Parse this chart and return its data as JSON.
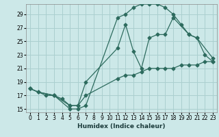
{
  "xlabel": "Humidex (Indice chaleur)",
  "bg_color": "#cce8e8",
  "line_color": "#2d6b5e",
  "grid_color": "#aacfcf",
  "xlim": [
    -0.5,
    23.5
  ],
  "ylim": [
    14.5,
    30.5
  ],
  "yticks": [
    15,
    17,
    19,
    21,
    23,
    25,
    27,
    29
  ],
  "xticks": [
    0,
    1,
    2,
    3,
    4,
    5,
    6,
    7,
    8,
    9,
    10,
    11,
    12,
    13,
    14,
    15,
    16,
    17,
    18,
    19,
    20,
    21,
    22,
    23
  ],
  "line1_x": [
    0,
    1,
    3,
    4,
    5,
    6,
    7,
    11,
    12,
    13,
    14,
    15,
    16,
    17,
    18,
    19,
    20,
    21,
    22,
    23
  ],
  "line1_y": [
    18,
    17.5,
    17,
    16.5,
    15.5,
    15.5,
    17,
    19.5,
    20,
    20,
    20.5,
    21,
    21,
    21,
    21,
    21.5,
    21.5,
    21.5,
    22,
    22
  ],
  "line2_x": [
    0,
    1,
    3,
    5,
    6,
    7,
    11,
    12,
    13,
    14,
    15,
    16,
    17,
    18,
    20,
    21,
    22,
    23
  ],
  "line2_y": [
    18,
    17.5,
    17,
    15.5,
    15.5,
    19,
    24,
    27.5,
    23.5,
    21,
    25.5,
    26,
    26,
    28.5,
    26,
    25.5,
    23,
    22
  ],
  "line3_x": [
    0,
    2,
    3,
    5,
    6,
    7,
    11,
    12,
    13,
    14,
    15,
    16,
    17,
    18,
    19,
    20,
    21,
    23
  ],
  "line3_y": [
    18,
    17,
    17,
    15,
    15,
    15.5,
    28.5,
    29,
    30,
    30.5,
    30.5,
    30.5,
    30,
    29,
    27.5,
    26,
    25.5,
    22.5
  ]
}
